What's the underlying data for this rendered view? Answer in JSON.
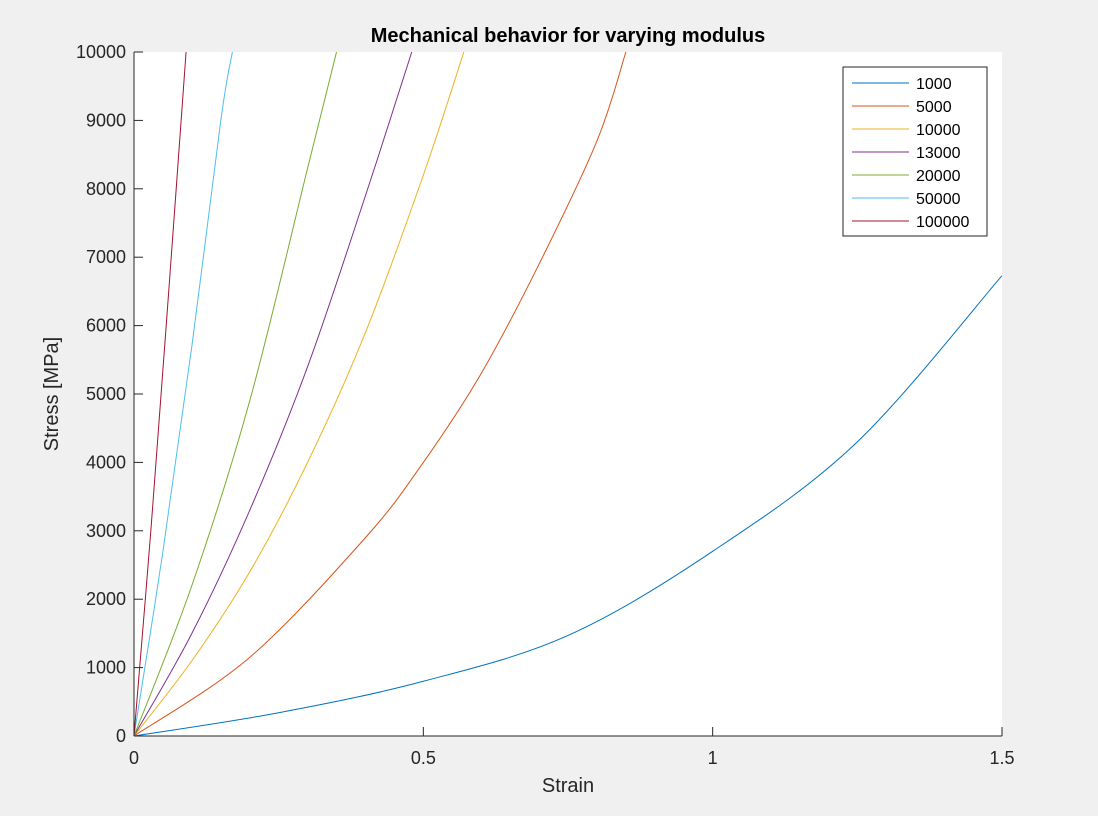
{
  "chart_data": {
    "type": "line",
    "title": "Mechanical behavior for varying modulus",
    "xlabel": "Strain",
    "ylabel": "Stress [MPa]",
    "xlim": [
      0,
      1.5
    ],
    "ylim": [
      0,
      10000
    ],
    "xticks": [
      0,
      0.5,
      1,
      1.5
    ],
    "xtick_labels": [
      "0",
      "0.5",
      "1",
      "1.5"
    ],
    "yticks": [
      0,
      1000,
      2000,
      3000,
      4000,
      5000,
      6000,
      7000,
      8000,
      9000,
      10000
    ],
    "ytick_labels": [
      "0",
      "1000",
      "2000",
      "3000",
      "4000",
      "5000",
      "6000",
      "7000",
      "8000",
      "9000",
      "10000"
    ],
    "grid": false,
    "legend_location": "top-right",
    "series": [
      {
        "name": "1000",
        "color": "#0072BD",
        "x": [
          0,
          0.25,
          0.5,
          0.75,
          1.0,
          1.25,
          1.5
        ],
        "y": [
          0,
          340,
          800,
          1470,
          2700,
          4300,
          6730
        ]
      },
      {
        "name": "5000",
        "color": "#D95319",
        "x": [
          0,
          0.2,
          0.4,
          0.5,
          0.6,
          0.7,
          0.8,
          0.85
        ],
        "y": [
          0,
          1150,
          2900,
          4000,
          5300,
          6900,
          8700,
          10000
        ]
      },
      {
        "name": "10000",
        "color": "#EDB120",
        "x": [
          0,
          0.1,
          0.2,
          0.3,
          0.4,
          0.5,
          0.57
        ],
        "y": [
          0,
          1100,
          2400,
          4000,
          5900,
          8200,
          10000
        ]
      },
      {
        "name": "13000",
        "color": "#7E2F8E",
        "x": [
          0,
          0.1,
          0.2,
          0.3,
          0.4,
          0.48
        ],
        "y": [
          0,
          1500,
          3300,
          5400,
          7900,
          10000
        ]
      },
      {
        "name": "20000",
        "color": "#77AC30",
        "x": [
          0,
          0.1,
          0.2,
          0.3,
          0.35
        ],
        "y": [
          0,
          2200,
          4900,
          8300,
          10000
        ]
      },
      {
        "name": "50000",
        "color": "#4DBEEE",
        "x": [
          0,
          0.05,
          0.1,
          0.15,
          0.17
        ],
        "y": [
          0,
          2700,
          5700,
          9000,
          10000
        ]
      },
      {
        "name": "100000",
        "color": "#A2142F",
        "x": [
          0,
          0.03,
          0.06,
          0.09
        ],
        "y": [
          0,
          3100,
          6500,
          10000
        ]
      }
    ]
  }
}
